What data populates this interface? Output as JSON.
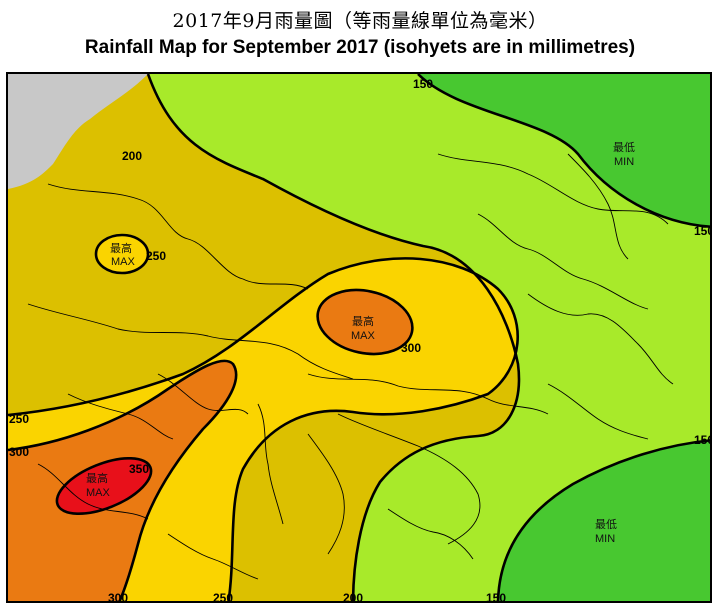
{
  "title": {
    "zh": "2017年9月雨量圖（等雨量線單位為毫米）",
    "en": "Rainfall Map for September 2017 (isohyets are in millimetres)"
  },
  "colors": {
    "gt350": "#e8101a",
    "r300_350": "#ea7a12",
    "r250_300": "#fad400",
    "r200_250": "#dcc000",
    "r150_200": "#a8ea2a",
    "lt150": "#48c830",
    "land_outside": "#c8c8c8",
    "isohyet_line": "#000000"
  },
  "isohyet_labels": {
    "l150_top": "150",
    "l150_right_top": "150",
    "l150_right_mid": "150",
    "l150_bottom": "150",
    "l200_top": "200",
    "l200_bottom": "200",
    "l250_max": "250",
    "l250_left": "250",
    "l250_bottom": "250",
    "l300_center": "300",
    "l300_left": "300",
    "l300_bottom": "300",
    "l350": "350"
  },
  "extrema": {
    "max_zh": "最高",
    "max_en": "MAX",
    "min_zh": "最低",
    "min_en": "MIN"
  }
}
